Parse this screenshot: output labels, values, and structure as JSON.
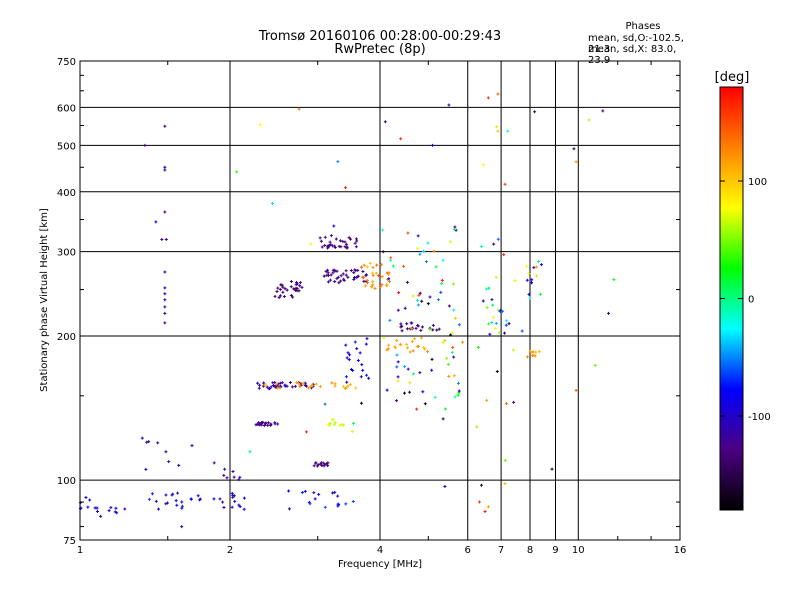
{
  "chart_data": {
    "type": "scatter",
    "title": "Tromsø 20160106 00:28:00-00:29:43",
    "subtitle": "RwPretec (8p)",
    "xlabel": "Frequency [MHz]",
    "ylabel": "Stationary phase Virtual Height [km]",
    "x_scale": "log",
    "y_scale": "log",
    "xlim": [
      1,
      16
    ],
    "ylim": [
      75,
      750
    ],
    "x_ticks": [
      "1",
      "2",
      "4",
      "6",
      "7",
      "8",
      "9",
      "10",
      "16"
    ],
    "y_ticks": [
      "75",
      "100",
      "200",
      "300",
      "400",
      "500",
      "600",
      "750"
    ],
    "grid": true,
    "phases_header": "Phases",
    "phase_stats": [
      "mean, sd,O:-102.5, 21.3",
      "mean, sd,X:  83.0, 23.9"
    ],
    "colorbar": {
      "label": "[deg]",
      "range": [
        -180,
        180
      ],
      "ticks": [
        "100",
        "0",
        "-100"
      ],
      "stops": [
        "#ff0000",
        "#ff8000",
        "#ffff00",
        "#00ff00",
        "#00ffff",
        "#0000ff",
        "#4b0082",
        "#000000"
      ]
    },
    "clusters": [
      {
        "x": [
          1.0,
          1.25
        ],
        "h": [
          85,
          92
        ],
        "phase": [
          -115,
          -70
        ],
        "n": 16
      },
      {
        "x": [
          1.35,
          1.75
        ],
        "h": [
          85,
          95
        ],
        "phase": [
          -120,
          -60
        ],
        "n": 20
      },
      {
        "x": [
          1.85,
          2.15
        ],
        "h": [
          86,
          96
        ],
        "phase": [
          -120,
          -80
        ],
        "n": 14
      },
      {
        "x": [
          2.6,
          3.6
        ],
        "h": [
          87,
          95
        ],
        "phase": [
          -110,
          -60
        ],
        "n": 18
      },
      {
        "x": [
          1.3,
          1.7
        ],
        "h": [
          105,
          125
        ],
        "phase": [
          -120,
          -100
        ],
        "n": 9
      },
      {
        "x": [
          1.85,
          2.1
        ],
        "h": [
          100,
          112
        ],
        "phase": [
          -130,
          -110
        ],
        "n": 8
      },
      {
        "x": [
          2.95,
          3.15
        ],
        "h": [
          107,
          109
        ],
        "phase": [
          -140,
          -120
        ],
        "n": 14
      },
      {
        "x": [
          2.25,
          2.5
        ],
        "h": [
          130,
          132
        ],
        "phase": [
          -140,
          -110
        ],
        "n": 22
      },
      {
        "x": [
          2.25,
          2.95
        ],
        "h": [
          155,
          160
        ],
        "phase": [
          -130,
          -100
        ],
        "n": 40
      },
      {
        "x": [
          2.25,
          3.6
        ],
        "h": [
          155,
          160
        ],
        "phase": [
          100,
          130
        ],
        "n": 25
      },
      {
        "x": [
          3.1,
          3.4
        ],
        "h": [
          130,
          134
        ],
        "phase": [
          50,
          80
        ],
        "n": 10
      },
      {
        "x": [
          2.45,
          2.8
        ],
        "h": [
          240,
          260
        ],
        "phase": [
          -150,
          -120
        ],
        "n": 30
      },
      {
        "x": [
          3.1,
          3.8
        ],
        "h": [
          258,
          275
        ],
        "phase": [
          -140,
          -110
        ],
        "n": 40
      },
      {
        "x": [
          3.6,
          4.2
        ],
        "h": [
          250,
          285
        ],
        "phase": [
          100,
          150
        ],
        "n": 30
      },
      {
        "x": [
          3.0,
          3.6
        ],
        "h": [
          305,
          325
        ],
        "phase": [
          -150,
          -120
        ],
        "n": 32
      },
      {
        "x": [
          3.4,
          3.8
        ],
        "h": [
          160,
          200
        ],
        "phase": [
          -110,
          -70
        ],
        "n": 20
      },
      {
        "x": [
          4.1,
          5.0
        ],
        "h": [
          185,
          200
        ],
        "phase": [
          100,
          130
        ],
        "n": 20
      },
      {
        "x": [
          4.4,
          5.2
        ],
        "h": [
          205,
          215
        ],
        "phase": [
          -150,
          -110
        ],
        "n": 20
      },
      {
        "x": [
          4.0,
          5.8
        ],
        "h": [
          140,
          240
        ],
        "phase": [
          -180,
          180
        ],
        "n": 50
      },
      {
        "x": [
          4.0,
          5.8
        ],
        "h": [
          240,
          340
        ],
        "phase": [
          -180,
          180
        ],
        "n": 30
      },
      {
        "x": [
          6.4,
          7.2
        ],
        "h": [
          200,
          240
        ],
        "phase": [
          -150,
          150
        ],
        "n": 18
      },
      {
        "x": [
          7.8,
          8.5
        ],
        "h": [
          240,
          290
        ],
        "phase": [
          -120,
          120
        ],
        "n": 14
      },
      {
        "x": [
          7.9,
          8.4
        ],
        "h": [
          180,
          186
        ],
        "phase": [
          100,
          130
        ],
        "n": 10
      },
      {
        "x": [
          6.2,
          7.5
        ],
        "h": [
          90,
          600
        ],
        "phase": [
          -180,
          180
        ],
        "n": 22
      },
      {
        "x": [
          2.0,
          12.0
        ],
        "h": [
          100,
          620
        ],
        "phase": [
          -180,
          180
        ],
        "n": 28
      }
    ],
    "points": [
      {
        "x": 1.35,
        "h": 500,
        "phase": -120
      },
      {
        "x": 1.48,
        "h": 548,
        "phase": -120
      },
      {
        "x": 1.48,
        "h": 450,
        "phase": -110
      },
      {
        "x": 1.48,
        "h": 444,
        "phase": -110
      },
      {
        "x": 1.48,
        "h": 363,
        "phase": -120
      },
      {
        "x": 1.42,
        "h": 346,
        "phase": -100
      },
      {
        "x": 1.46,
        "h": 318,
        "phase": -110
      },
      {
        "x": 1.49,
        "h": 318,
        "phase": -120
      },
      {
        "x": 1.48,
        "h": 272,
        "phase": -110
      },
      {
        "x": 1.48,
        "h": 252,
        "phase": -100
      },
      {
        "x": 1.48,
        "h": 245,
        "phase": -110
      },
      {
        "x": 1.48,
        "h": 238,
        "phase": -100
      },
      {
        "x": 1.48,
        "h": 230,
        "phase": -110
      },
      {
        "x": 1.48,
        "h": 223,
        "phase": -110
      },
      {
        "x": 1.48,
        "h": 213,
        "phase": -120
      },
      {
        "x": 5.5,
        "h": 607,
        "phase": -110
      },
      {
        "x": 6.6,
        "h": 628,
        "phase": 160
      },
      {
        "x": 6.9,
        "h": 640,
        "phase": 140
      },
      {
        "x": 10.5,
        "h": 565,
        "phase": 60
      },
      {
        "x": 11.2,
        "h": 590,
        "phase": -130
      },
      {
        "x": 9.8,
        "h": 492,
        "phase": -140
      },
      {
        "x": 9.9,
        "h": 462,
        "phase": 120
      },
      {
        "x": 6.9,
        "h": 535,
        "phase": 100
      },
      {
        "x": 2.3,
        "h": 552,
        "phase": 80
      },
      {
        "x": 5.1,
        "h": 500,
        "phase": -100
      },
      {
        "x": 4.1,
        "h": 560,
        "phase": -120
      },
      {
        "x": 4.4,
        "h": 516,
        "phase": 160
      },
      {
        "x": 11.5,
        "h": 223,
        "phase": -110
      },
      {
        "x": 6.5,
        "h": 86,
        "phase": 170
      },
      {
        "x": 6.6,
        "h": 88,
        "phase": 120
      },
      {
        "x": 5.4,
        "h": 97,
        "phase": -100
      },
      {
        "x": 1.1,
        "h": 84,
        "phase": -110
      },
      {
        "x": 1.6,
        "h": 80,
        "phase": -110
      },
      {
        "x": 9.9,
        "h": 154,
        "phase": 140
      }
    ]
  }
}
